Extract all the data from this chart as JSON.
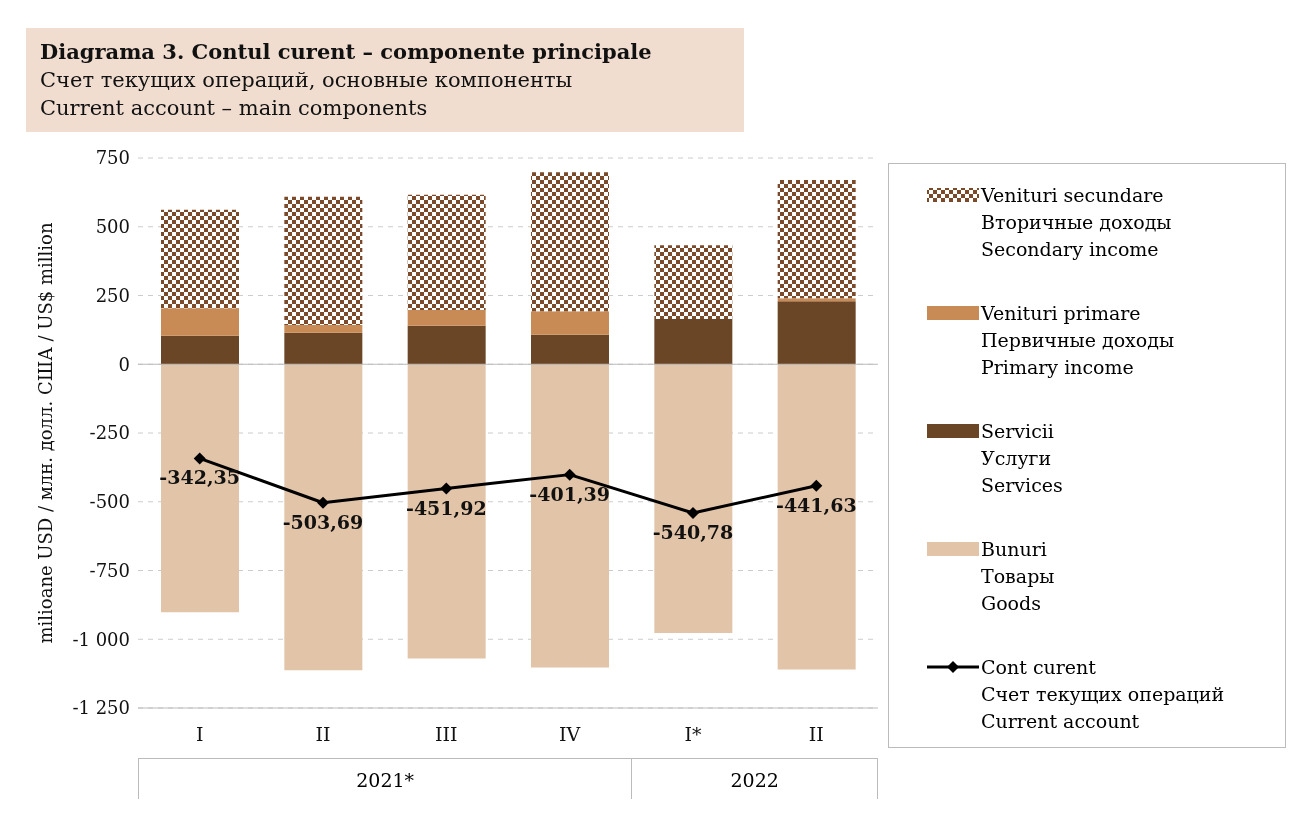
{
  "chart_data": {
    "type": "bar",
    "stacked": true,
    "title": "Diagrama 3. Contul curent – componente principale",
    "subtitle": "Счет текущих операций, основные компоненты\nCurrent account – main components",
    "ylabel": "milioane USD / млн. долл. США / US$ million",
    "categories": [
      "I",
      "II",
      "III",
      "IV",
      "I*",
      "II"
    ],
    "annotations": [
      "2021*",
      "2022"
    ],
    "series": [
      {
        "name": "Bunuri\nТовары\nGoods",
        "color": "#e2c4a8",
        "values": [
          -902,
          -1113,
          -1070,
          -1103,
          -977,
          -1110
        ]
      },
      {
        "name": "Servicii\nУслуги\nServices",
        "color": "#6b4626",
        "values": [
          104,
          115,
          140,
          107,
          165,
          229
        ]
      },
      {
        "name": "Venituri primare\nПервичные доходы\nPrimary income",
        "color": "#c98b55",
        "values": [
          100,
          28,
          57,
          86,
          null,
          11
        ]
      },
      {
        "name": "Venituri secundare\nВторичные доходы\nSecondary income",
        "color": "#7a4a2a",
        "values": [
          358,
          466,
          419,
          505,
          268,
          430
        ]
      },
      {
        "name": "Cont curent\nСчет текущих операций\nCurrent account",
        "type": "line",
        "color": "#000000",
        "marker": "diamond",
        "line_style": "solid",
        "values": [
          -342.35,
          -503.69,
          -451.92,
          -401.39,
          -540.78,
          -441.63
        ],
        "value_labels": [
          "-342,35",
          "-503,69",
          "-451,92",
          "-401,39",
          "-540,78",
          "-441,63"
        ]
      }
    ],
    "ylim": [
      -1250,
      750
    ],
    "yticks": [
      750,
      500,
      250,
      0,
      {
        "value": -250,
        "label": "-250"
      },
      {
        "value": -500,
        "label": "-500"
      },
      {
        "value": -750,
        "label": "-750"
      },
      {
        "value": -1000,
        "label": "-1 000"
      },
      {
        "value": -1250,
        "label": "-1 250"
      }
    ],
    "grid": "y",
    "legend": "right"
  }
}
